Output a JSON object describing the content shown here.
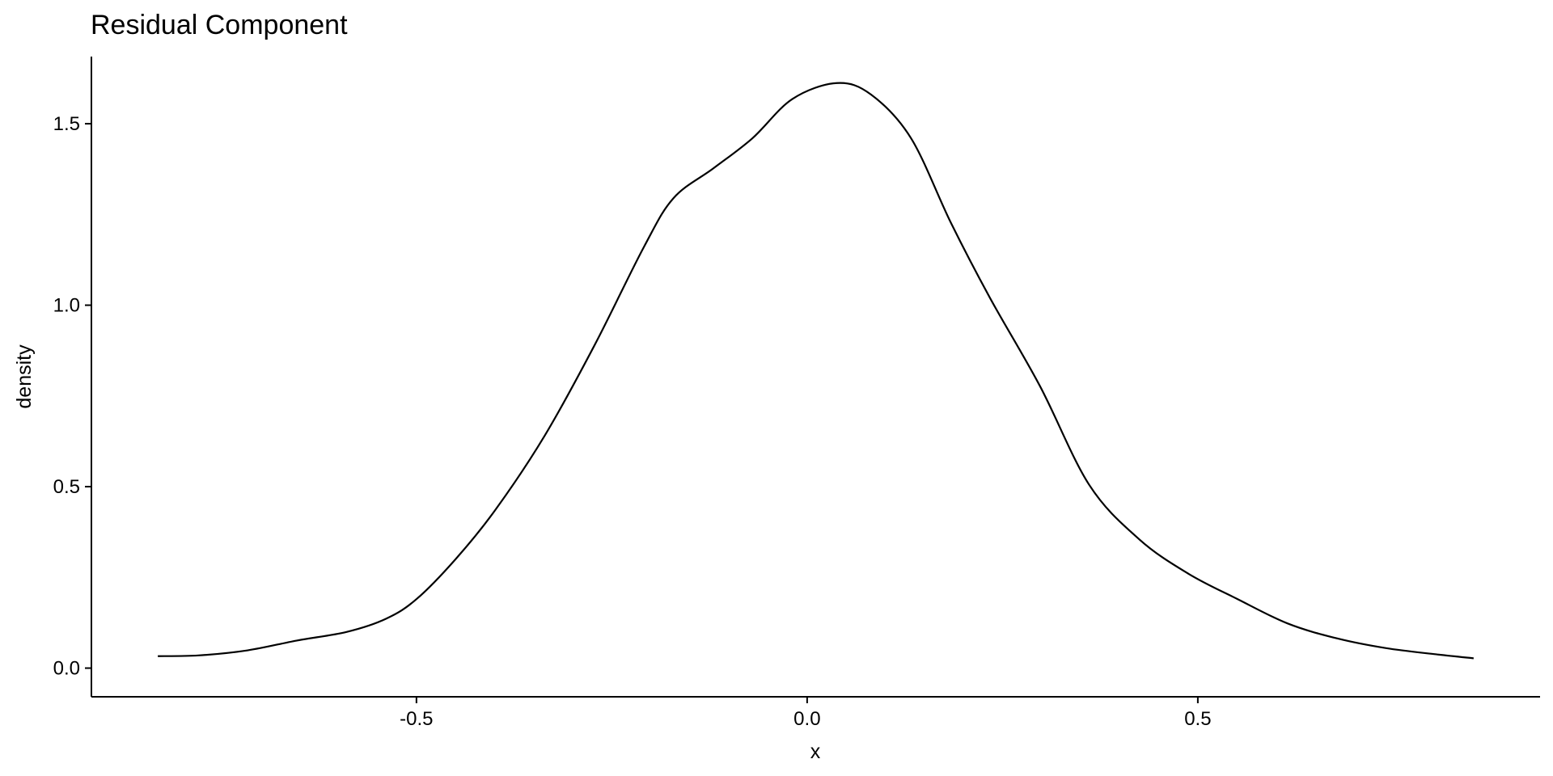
{
  "chart_data": {
    "type": "line",
    "title": "Residual Component",
    "xlabel": "x",
    "ylabel": "density",
    "xlim": [
      -0.916,
      0.938
    ],
    "ylim": [
      -0.079,
      1.685
    ],
    "xticks": [
      -0.5,
      0.0,
      0.5
    ],
    "xtick_labels": [
      "-0.5",
      "0.0",
      "0.5"
    ],
    "yticks": [
      0.0,
      0.5,
      1.0,
      1.5
    ],
    "ytick_labels": [
      "0.0",
      "0.5",
      "1.0",
      "1.5"
    ],
    "grid": false,
    "line_color": "#000000",
    "series": [
      {
        "x": [
          -0.831,
          -0.779,
          -0.716,
          -0.653,
          -0.589,
          -0.539,
          -0.5,
          -0.45,
          -0.399,
          -0.336,
          -0.272,
          -0.209,
          -0.171,
          -0.12,
          -0.07,
          -0.019,
          0.038,
          0.082,
          0.133,
          0.184,
          0.234,
          0.298,
          0.361,
          0.425,
          0.488,
          0.551,
          0.615,
          0.678,
          0.741,
          0.805,
          0.853
        ],
        "y": [
          0.033,
          0.035,
          0.049,
          0.076,
          0.1,
          0.136,
          0.19,
          0.3,
          0.436,
          0.64,
          0.89,
          1.16,
          1.295,
          1.377,
          1.46,
          1.568,
          1.612,
          1.58,
          1.46,
          1.227,
          1.02,
          0.777,
          0.505,
          0.355,
          0.26,
          0.19,
          0.123,
          0.082,
          0.055,
          0.038,
          0.027
        ]
      }
    ]
  }
}
